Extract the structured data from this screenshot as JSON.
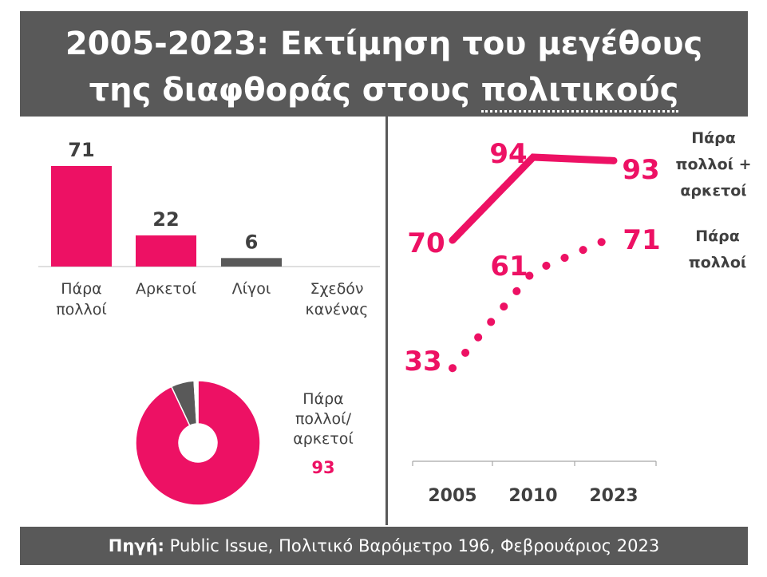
{
  "title": {
    "line1": "2005-2023: Εκτίμηση του μεγέθους",
    "line2_plain": "της διαφθοράς στους ",
    "line2_underlined": "πολιτικούς"
  },
  "footer": {
    "source_label": "Πηγή:",
    "source_text": " Public Issue, Πολιτικό Βαρόμετρο 196, Φεβρουάριος 2023"
  },
  "colors": {
    "accent": "#ed1164",
    "dark": "#595959",
    "text": "#404040"
  },
  "chart_data": [
    {
      "type": "bar",
      "categories": [
        [
          "Πάρα",
          "πολλοί"
        ],
        [
          "Αρκετοί"
        ],
        [
          "Λίγοι"
        ],
        [
          "Σχεδόν",
          "κανένας"
        ]
      ],
      "values": [
        71,
        22,
        6,
        null
      ],
      "value_labels": [
        "71",
        "22",
        "6",
        ""
      ],
      "bar_colors": [
        "#ed1164",
        "#ed1164",
        "#595959",
        "#595959"
      ],
      "ylim": [
        0,
        75
      ]
    },
    {
      "type": "pie",
      "donut": true,
      "slices": [
        {
          "value": 93,
          "color": "#ed1164"
        },
        {
          "value": 6,
          "color": "#595959"
        },
        {
          "value": 1,
          "color": "#ffffff"
        }
      ],
      "label_lines": [
        "Πάρα",
        "πολλοί/",
        "αρκετοί"
      ],
      "label_value": "93"
    },
    {
      "type": "line",
      "x": [
        "2005",
        "2010",
        "2023"
      ],
      "ylim": [
        30,
        100
      ],
      "series": [
        {
          "name_lines": [
            "Πάρα",
            "πολλοί +",
            "αρκετοί"
          ],
          "values": [
            70,
            94,
            93
          ],
          "labels": [
            "70",
            "94",
            "93"
          ],
          "style": "solid",
          "color": "#ed1164"
        },
        {
          "name_lines": [
            "Πάρα",
            "πολλοί"
          ],
          "values": [
            33,
            61,
            71
          ],
          "labels": [
            "33",
            "61",
            "71"
          ],
          "style": "dotted",
          "color": "#ed1164"
        }
      ]
    }
  ]
}
